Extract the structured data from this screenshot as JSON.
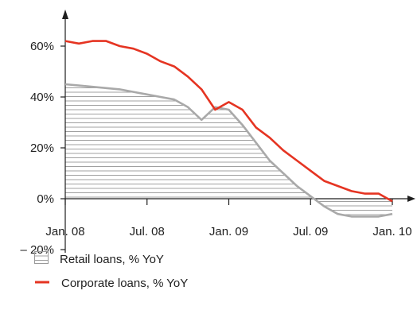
{
  "chart_data": {
    "type": "line",
    "x": [
      "Jan. 08",
      "Feb. 08",
      "Mar. 08",
      "Apr. 08",
      "May 08",
      "Jun. 08",
      "Jul. 08",
      "Aug. 08",
      "Sep. 08",
      "Oct. 08",
      "Nov. 08",
      "Dec. 08",
      "Jan. 09",
      "Feb. 09",
      "Mar. 09",
      "Apr. 09",
      "May 09",
      "Jun. 09",
      "Jul. 09",
      "Aug. 09",
      "Sep. 09",
      "Oct. 09",
      "Nov. 09",
      "Dec. 09",
      "Jan. 10"
    ],
    "series": [
      {
        "name": "Corporate loans, % YoY",
        "color": "#e53422",
        "values": [
          62,
          61,
          62,
          62,
          60,
          59,
          57,
          54,
          52,
          48,
          43,
          35,
          38,
          35,
          28,
          24,
          19,
          15,
          11,
          7,
          5,
          3,
          2,
          2,
          -1
        ]
      },
      {
        "name": "Retail loans, % YoY",
        "color": "#a9a9a9",
        "fill": "hatched",
        "values": [
          45,
          44.5,
          44,
          43.5,
          43,
          42,
          41,
          40,
          39,
          36,
          31,
          36,
          35,
          29,
          22,
          15,
          10,
          5,
          1,
          -3,
          -6,
          -7,
          -7,
          -7,
          -6
        ]
      }
    ],
    "y_ticks": [
      {
        "value": 60,
        "label": "60%"
      },
      {
        "value": 40,
        "label": "40%"
      },
      {
        "value": 20,
        "label": "20%"
      },
      {
        "value": 0,
        "label": "0%"
      },
      {
        "value": -20,
        "label": "– 20%"
      }
    ],
    "x_ticks": [
      {
        "index": 0,
        "label": "Jan. 08",
        "color": "#1f1f1f"
      },
      {
        "index": 6,
        "label": "Jul. 08",
        "color": "#1f1f1f"
      },
      {
        "index": 12,
        "label": "Jan. 09",
        "color": "#1f1f1f"
      },
      {
        "index": 18,
        "label": "Jul. 09",
        "color": "#1f1f1f"
      },
      {
        "index": 24,
        "label": "Jan. 10",
        "color": "#e53422"
      }
    ],
    "ylim": [
      -20,
      70
    ],
    "grid": false,
    "legend_position": "bottom-left"
  },
  "legend": {
    "retail_label": "Retail loans, % YoY",
    "corporate_label": "Corporate loans, % YoY"
  }
}
